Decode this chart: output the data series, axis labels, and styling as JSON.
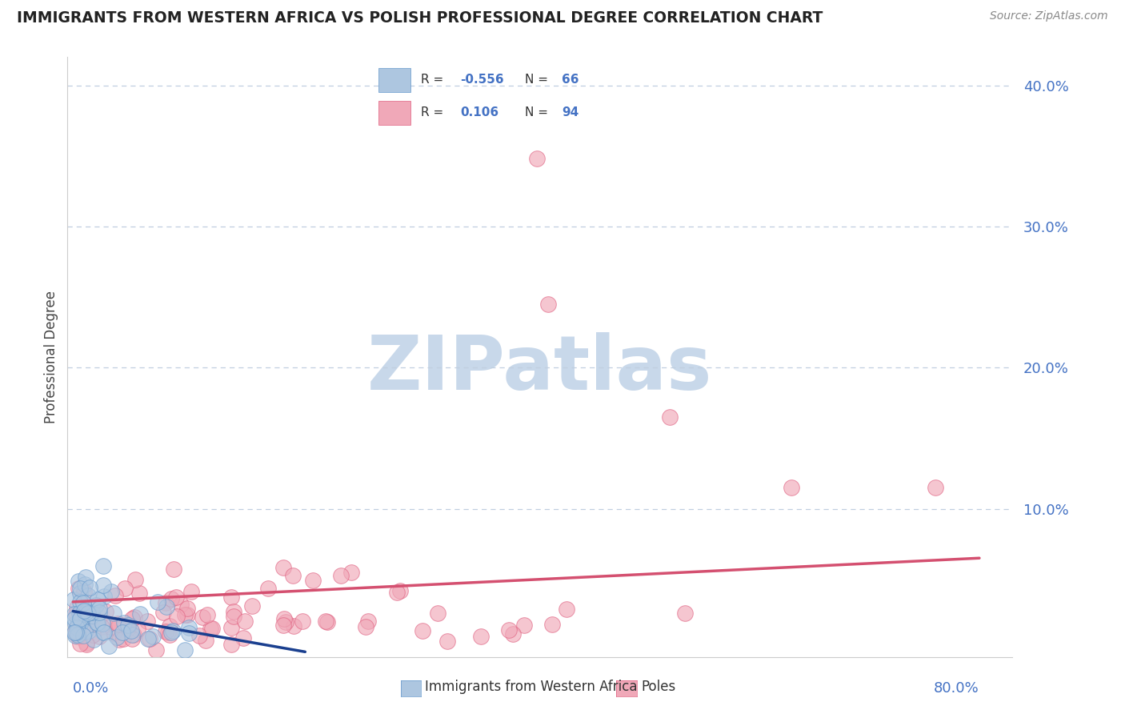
{
  "title": "IMMIGRANTS FROM WESTERN AFRICA VS POLISH PROFESSIONAL DEGREE CORRELATION CHART",
  "source": "Source: ZipAtlas.com",
  "ylabel": "Professional Degree",
  "r_blue": -0.556,
  "n_blue": 66,
  "r_pink": 0.106,
  "n_pink": 94,
  "blue_color": "#adc6e0",
  "pink_color": "#f0a8b8",
  "blue_edge_color": "#6699cc",
  "pink_edge_color": "#e06080",
  "blue_line_color": "#1a3f8f",
  "pink_line_color": "#d45070",
  "legend_blue_label": "Immigrants from Western Africa",
  "legend_pink_label": "Poles",
  "background_color": "#ffffff",
  "watermark": "ZIPatlas",
  "watermark_color": "#c8d8ea",
  "seed": 42,
  "ytick_color": "#4472c4",
  "grid_color": "#c0cfe0",
  "title_color": "#222222",
  "source_color": "#888888"
}
